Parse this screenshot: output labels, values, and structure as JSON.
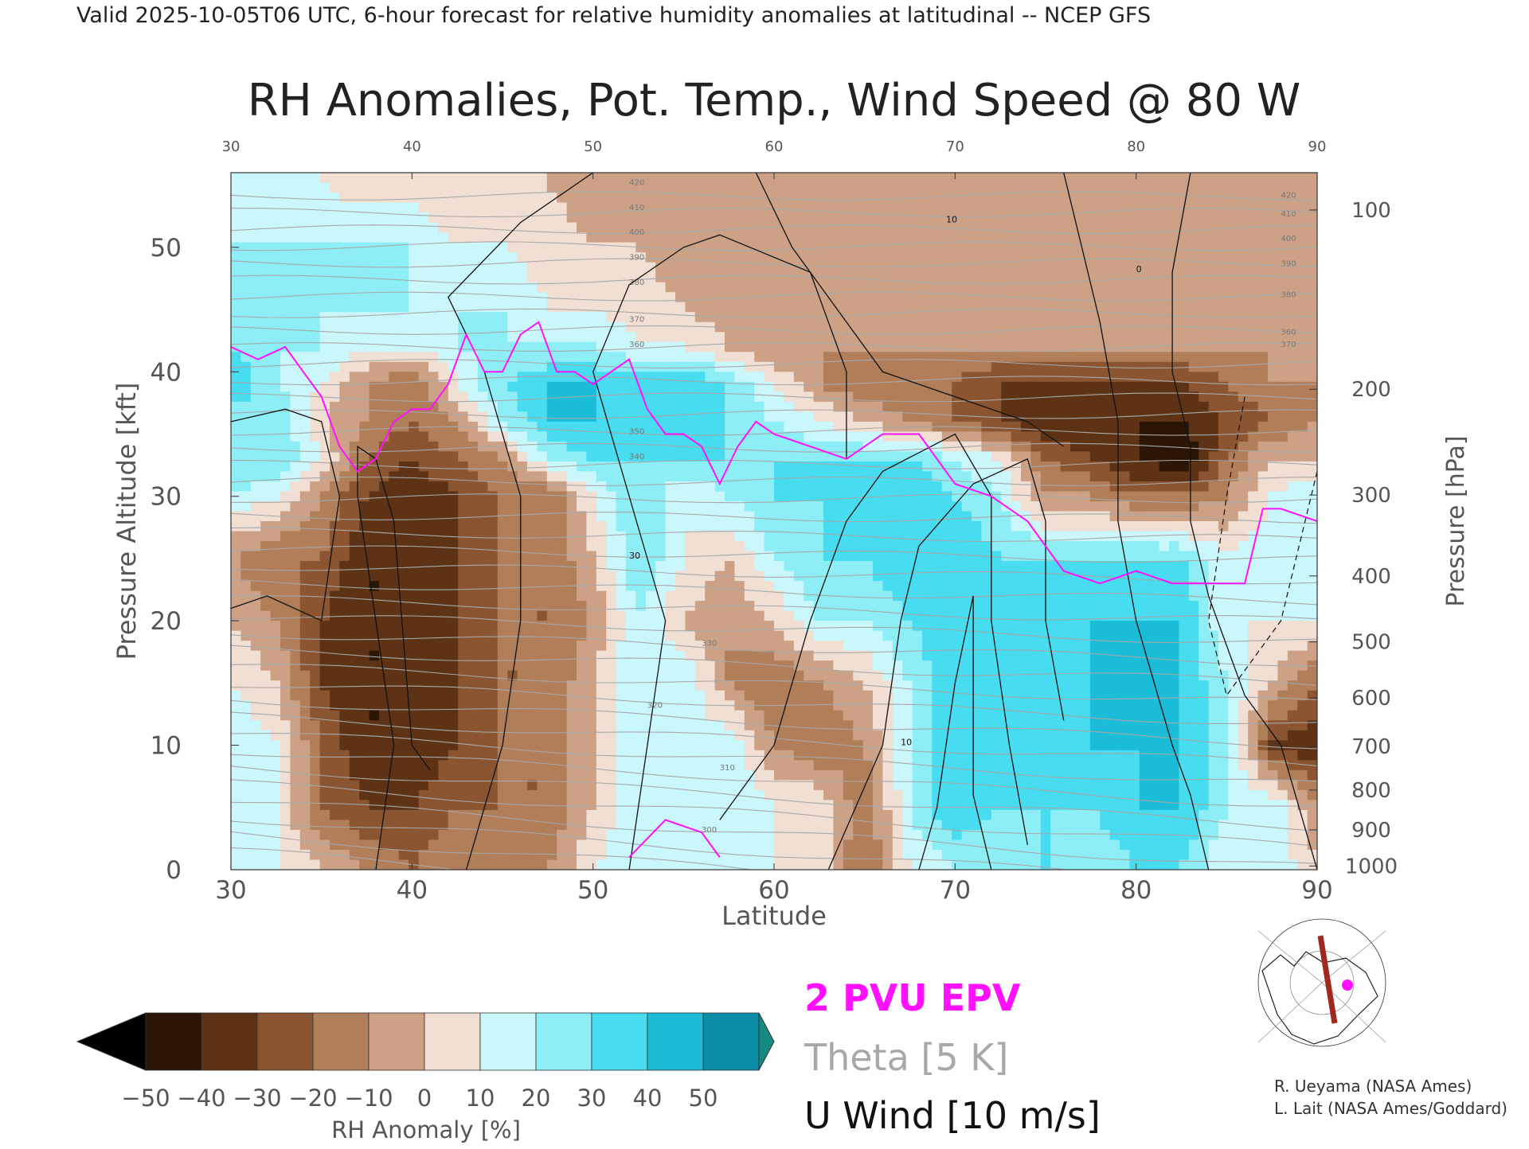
{
  "header": {
    "valid_line": "Valid 2025-10-05T06 UTC, 6-hour forecast for relative humidity anomalies at latitudinal -- NCEP GFS"
  },
  "chart_data": {
    "type": "heatmap",
    "title": "RH Anomalies, Pot. Temp., Wind Speed @ 80 W",
    "xlabel": "Latitude",
    "ylabel": "Pressure Altitude [kft]",
    "ylabel_right": "Pressure [hPa]",
    "xlim": [
      30,
      90
    ],
    "ylim": [
      0,
      56
    ],
    "x_ticks": [
      30,
      40,
      50,
      60,
      70,
      80,
      90
    ],
    "y_ticks": [
      0,
      10,
      20,
      30,
      40,
      50
    ],
    "pressure_ticks": [
      {
        "label": "100",
        "kft": 53
      },
      {
        "label": "200",
        "kft": 38.6
      },
      {
        "label": "300",
        "kft": 30.1
      },
      {
        "label": "400",
        "kft": 23.6
      },
      {
        "label": "500",
        "kft": 18.3
      },
      {
        "label": "600",
        "kft": 13.8
      },
      {
        "label": "700",
        "kft": 9.9
      },
      {
        "label": "800",
        "kft": 6.4
      },
      {
        "label": "900",
        "kft": 3.2
      },
      {
        "label": "1000",
        "kft": 0.3
      }
    ],
    "colorbar": {
      "label": "RH Anomaly [%]",
      "ticks": [
        "−50",
        "−40",
        "−30",
        "−20",
        "−10",
        "0",
        "10",
        "20",
        "30",
        "40",
        "50"
      ],
      "colors": [
        "#2b1606",
        "#5e3315",
        "#8a5530",
        "#b07e59",
        "#cda185",
        "#f1dfd3",
        "#c9f7fb",
        "#8eeef6",
        "#47dcef",
        "#1bbcd8",
        "#0b8da8"
      ],
      "under_color": "#000000",
      "over_color": "#168a82"
    },
    "legend": [
      {
        "label": "2 PVU EPV",
        "color": "#ff10ff"
      },
      {
        "label": "Theta [5 K]",
        "color": "#a8a8a8"
      },
      {
        "label": "U Wind [10 m/s]",
        "color": "#111111"
      }
    ],
    "rh_field": {
      "lat": [
        30,
        32.5,
        35,
        37.5,
        40,
        42.5,
        45,
        47.5,
        50,
        52.5,
        55,
        57.5,
        60,
        62.5,
        65,
        67.5,
        70,
        72.5,
        75,
        77.5,
        80,
        82.5,
        85,
        87.5,
        90
      ],
      "kft": [
        0,
        5,
        10,
        15,
        20,
        25,
        30,
        33,
        36,
        39,
        42,
        45,
        50,
        55
      ],
      "values": [
        [
          10,
          10,
          0,
          -10,
          -20,
          -10,
          -20,
          -10,
          10,
          20,
          20,
          20,
          10,
          5,
          -20,
          10,
          20,
          20,
          30,
          20,
          30,
          30,
          10,
          20,
          0
        ],
        [
          10,
          10,
          -20,
          -30,
          -30,
          -20,
          -20,
          -20,
          0,
          20,
          10,
          20,
          10,
          10,
          -20,
          20,
          40,
          30,
          30,
          30,
          40,
          40,
          20,
          20,
          -10
        ],
        [
          20,
          10,
          -20,
          -40,
          -40,
          -30,
          -20,
          -20,
          0,
          20,
          10,
          20,
          -10,
          -20,
          -10,
          20,
          40,
          30,
          30,
          40,
          40,
          40,
          20,
          -30,
          -40
        ],
        [
          10,
          0,
          -30,
          -40,
          -40,
          -30,
          -20,
          -20,
          0,
          20,
          20,
          -10,
          -20,
          -10,
          0,
          20,
          40,
          30,
          30,
          40,
          40,
          40,
          20,
          0,
          -20
        ],
        [
          0,
          -10,
          -30,
          -40,
          -40,
          -30,
          -20,
          -20,
          -10,
          20,
          0,
          -10,
          0,
          20,
          20,
          30,
          40,
          30,
          30,
          40,
          40,
          40,
          10,
          10,
          10
        ],
        [
          -10,
          -20,
          -20,
          -40,
          -40,
          -30,
          -20,
          -20,
          0,
          30,
          10,
          0,
          20,
          30,
          30,
          40,
          40,
          30,
          30,
          30,
          30,
          30,
          10,
          20,
          20
        ],
        [
          20,
          10,
          -10,
          -30,
          -40,
          -30,
          -20,
          -20,
          10,
          30,
          10,
          20,
          30,
          30,
          30,
          40,
          30,
          20,
          -10,
          -10,
          -20,
          -20,
          -10,
          10,
          20
        ],
        [
          30,
          30,
          10,
          -20,
          -30,
          -20,
          -10,
          20,
          30,
          30,
          30,
          30,
          30,
          30,
          30,
          30,
          20,
          10,
          -20,
          -30,
          -40,
          -50,
          -20,
          0,
          0
        ],
        [
          20,
          30,
          0,
          -10,
          -20,
          -10,
          20,
          40,
          40,
          30,
          30,
          30,
          20,
          10,
          0,
          -10,
          -20,
          -30,
          -40,
          -40,
          -40,
          -40,
          -30,
          -20,
          -10
        ],
        [
          40,
          20,
          10,
          -10,
          -20,
          10,
          30,
          40,
          40,
          40,
          40,
          30,
          10,
          -10,
          -20,
          -20,
          -20,
          -30,
          -30,
          -30,
          -30,
          -30,
          -20,
          -10,
          -10
        ],
        [
          30,
          20,
          20,
          10,
          10,
          20,
          20,
          20,
          20,
          10,
          10,
          0,
          -10,
          -10,
          -10,
          -10,
          -10,
          -10,
          -10,
          -10,
          -10,
          -10,
          -10,
          -10,
          -10
        ],
        [
          20,
          20,
          20,
          20,
          20,
          20,
          20,
          10,
          10,
          5,
          0,
          -5,
          -5,
          -5,
          -5,
          -5,
          -5,
          -5,
          -5,
          -5,
          -5,
          -5,
          -5,
          -5,
          -5
        ],
        [
          20,
          20,
          20,
          20,
          20,
          10,
          10,
          5,
          0,
          0,
          -5,
          -5,
          -5,
          -5,
          -5,
          -5,
          -5,
          -5,
          -5,
          -5,
          -5,
          -5,
          -5,
          -5,
          -5
        ],
        [
          10,
          10,
          10,
          5,
          5,
          0,
          0,
          0,
          -5,
          -5,
          -5,
          -5,
          -5,
          -5,
          -5,
          -5,
          -5,
          -5,
          -5,
          -5,
          -5,
          -5,
          -5,
          -5,
          -5
        ]
      ]
    },
    "epv_2pvu": {
      "lat": [
        30,
        31.5,
        33,
        34,
        35,
        36,
        37,
        38,
        39,
        40,
        41,
        42,
        43,
        44,
        45,
        46,
        47,
        48,
        49,
        50,
        51,
        52,
        53,
        54,
        55,
        56,
        57,
        58,
        59,
        60,
        62,
        64,
        66,
        68,
        70,
        72,
        74,
        76,
        78,
        80,
        82,
        84,
        86,
        87,
        88,
        90
      ],
      "kft": [
        42,
        41,
        42,
        40,
        38,
        34,
        32,
        33,
        36,
        37,
        37,
        39,
        43,
        40,
        40,
        43,
        44,
        40,
        40,
        39,
        40,
        41,
        37,
        35,
        35,
        34,
        31,
        34,
        36,
        35,
        34,
        33,
        35,
        35,
        31,
        30,
        28,
        24,
        23,
        24,
        23,
        23,
        23,
        29,
        29,
        28
      ]
    },
    "theta_labels": [
      "300",
      "310",
      "320",
      "330",
      "340",
      "350",
      "360",
      "370",
      "380",
      "390",
      "400",
      "410",
      "420"
    ],
    "wind_labels": [
      "0",
      "10",
      "30"
    ],
    "credits": [
      "R. Ueyama (NASA Ames)",
      "L. Lait (NASA Ames/Goddard)"
    ]
  }
}
